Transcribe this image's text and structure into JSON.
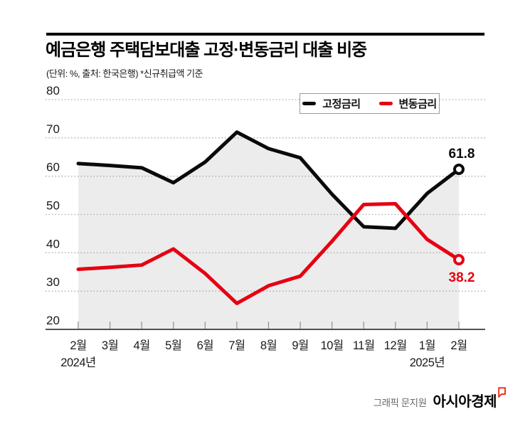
{
  "header": {
    "title": "예금은행 주택담보대출 고정·변동금리 대출 비중",
    "subtitle": "(단위: %, 출처: 한국은행)  *신규취급액 기준"
  },
  "legend": {
    "items": [
      {
        "label": "고정금리",
        "color": "#0a0a0a"
      },
      {
        "label": "변동금리",
        "color": "#e60012"
      }
    ]
  },
  "footer": {
    "credit": "그래픽 문지원",
    "brand": "아시아경제",
    "brand_mark": "speech-bubble-mark",
    "brand_mark_color": "#f0341e"
  },
  "colors": {
    "fixed_line": "#0a0a0a",
    "variable_line": "#e60012",
    "area_fill": "#ececec",
    "gridline": "#a8a8a8",
    "axis": "#1a1a1a",
    "tick": "#8f8f8f"
  },
  "chart_data": {
    "type": "line",
    "title": "예금은행 주택담보대출 고정·변동금리 대출 비중",
    "unit": "%",
    "source": "한국은행",
    "note": "신규취급액 기준",
    "categories": [
      "2월",
      "3월",
      "4월",
      "5월",
      "6월",
      "7월",
      "8월",
      "9월",
      "10월",
      "11월",
      "12월",
      "1월",
      "2월"
    ],
    "year_labels": [
      {
        "index": 0,
        "label": "2024년"
      },
      {
        "index": 11,
        "label": "2025년"
      }
    ],
    "series": [
      {
        "name": "고정금리",
        "color": "#0a0a0a",
        "values": [
          63.3,
          62.8,
          62.2,
          58.3,
          63.7,
          71.5,
          67.2,
          64.8,
          55.3,
          46.8,
          46.4,
          55.5,
          61.8
        ],
        "end_label": "61.8",
        "end_label_position": "above",
        "end_marker": true,
        "area_fill": "#ececec"
      },
      {
        "name": "변동금리",
        "color": "#e60012",
        "values": [
          35.7,
          36.2,
          36.8,
          41.0,
          34.6,
          26.8,
          31.4,
          33.9,
          43.0,
          52.6,
          52.8,
          43.5,
          38.2
        ],
        "end_label": "38.2",
        "end_label_position": "below",
        "end_marker": true
      }
    ],
    "ylim": [
      20,
      80
    ],
    "yticks": [
      80,
      70,
      60,
      50,
      40,
      30,
      20
    ],
    "grid": "dotted-horizontal",
    "legend_position": "top-right-box"
  }
}
